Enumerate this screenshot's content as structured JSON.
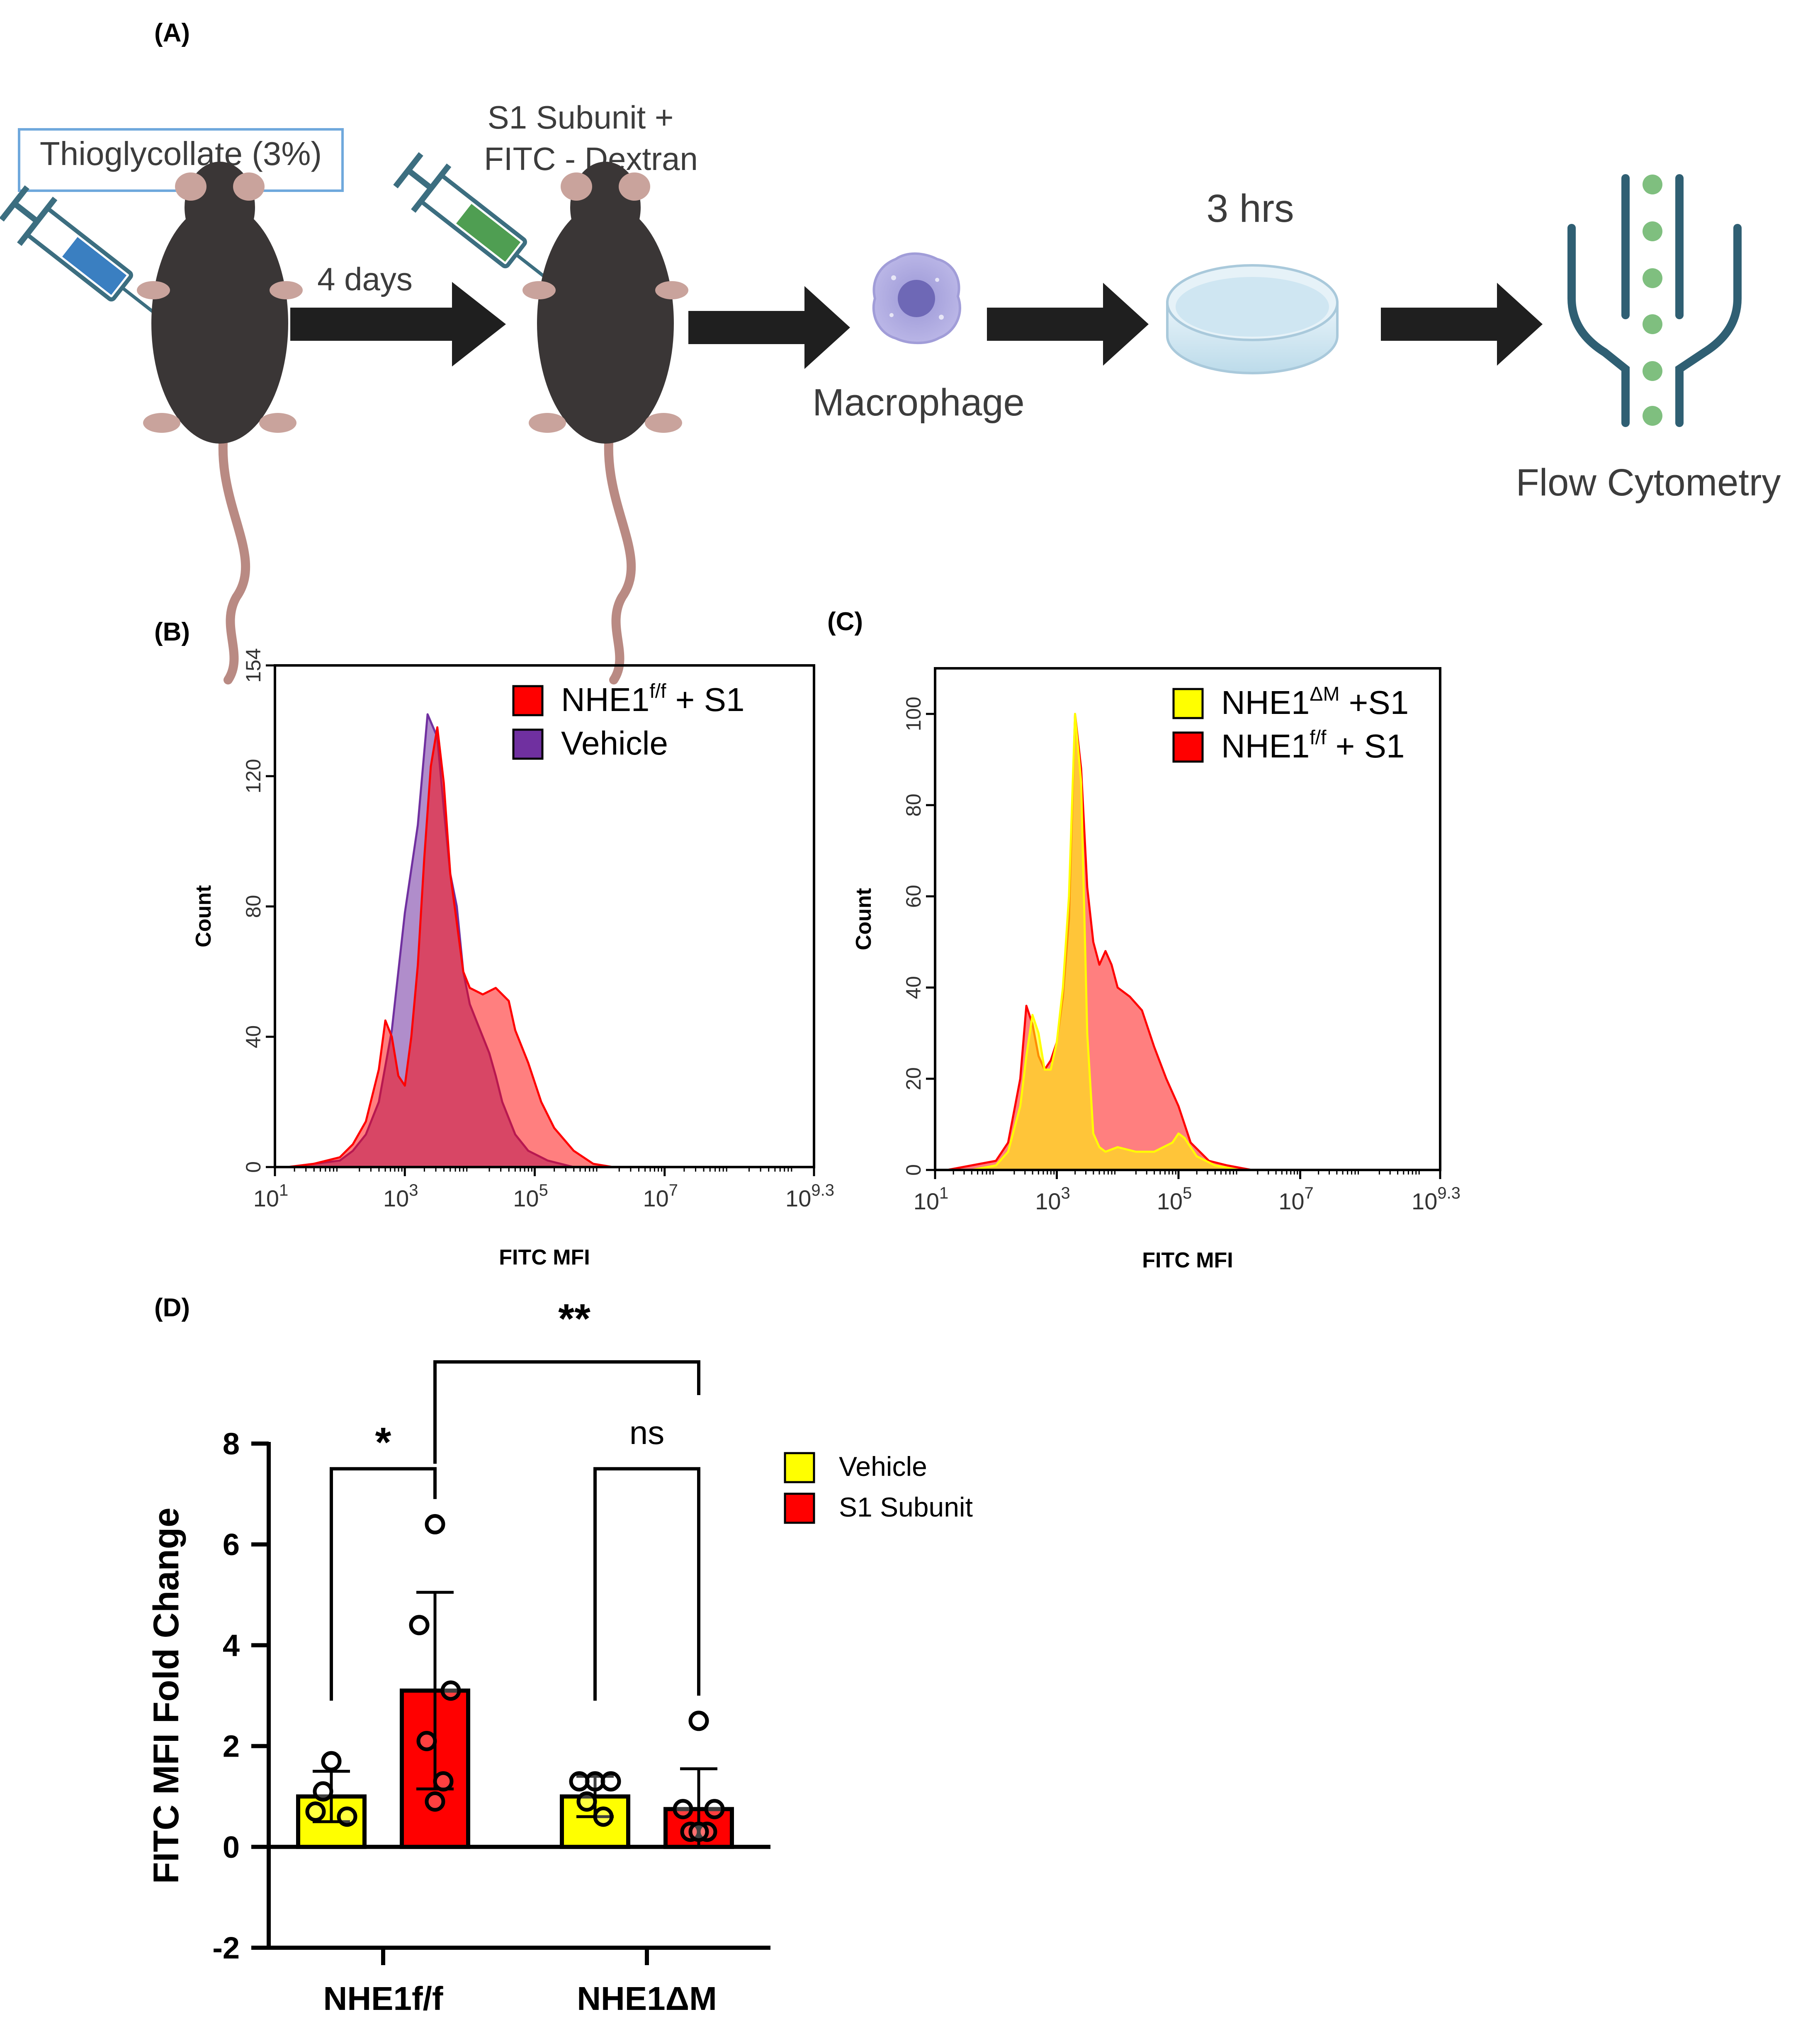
{
  "panel_a": {
    "label": "(A)",
    "injection1": "Thioglycollate (3%)",
    "arrow1_label": "4 days",
    "injection2_line1": "S1 Subunit +",
    "injection2_line2": "FITC - Dextran",
    "cell_label": "Macrophage",
    "incubation_label": "3 hrs",
    "readout_label": "Flow Cytometry",
    "colors": {
      "mouse": "#3a3636",
      "tail": "#b98a83",
      "syringe1": "#3a7fc1",
      "syringe2": "#4f9e52",
      "macrophage": "#8a86c8",
      "dish": "#cfe6f2",
      "flow_line": "#2f5f73",
      "flow_dot": "#7fbf7f",
      "arrow": "#1f1f1f",
      "box_border": "#6fa8dc"
    }
  },
  "chart_data": [
    {
      "panel": "(B)",
      "type": "area",
      "xlabel": "FITC MFI",
      "ylabel": "Count",
      "xscale": "log10",
      "xlim": [
        1,
        9.3
      ],
      "ylim": [
        0,
        154
      ],
      "xticks": [
        {
          "pos": 1,
          "base": "10",
          "exp": "1"
        },
        {
          "pos": 3,
          "base": "10",
          "exp": "3"
        },
        {
          "pos": 5,
          "base": "10",
          "exp": "5"
        },
        {
          "pos": 7,
          "base": "10",
          "exp": "7"
        },
        {
          "pos": 9.3,
          "base": "10",
          "exp": "9.3"
        }
      ],
      "yticks": [
        0,
        40,
        80,
        120,
        154
      ],
      "legend_position": "top-right",
      "series": [
        {
          "name": "Vehicle",
          "legend_parts": [
            "Vehicle",
            "",
            ""
          ],
          "color": "#7030a0",
          "fill_opacity": 0.55,
          "x": [
            1.2,
            1.6,
            2.0,
            2.2,
            2.4,
            2.6,
            2.8,
            3.0,
            3.2,
            3.35,
            3.5,
            3.6,
            3.7,
            3.8,
            3.9,
            4.0,
            4.1,
            4.2,
            4.3,
            4.4,
            4.5,
            4.7,
            4.9,
            5.2,
            5.6
          ],
          "y": [
            0,
            1,
            2,
            5,
            10,
            20,
            42,
            78,
            105,
            139,
            132,
            110,
            90,
            80,
            60,
            50,
            45,
            40,
            35,
            28,
            20,
            10,
            5,
            2,
            0
          ]
        },
        {
          "name": "NHE1f/f + S1",
          "legend_parts": [
            "NHE1",
            "f/f",
            " + S1"
          ],
          "color": "#ff0000",
          "fill_opacity": 0.5,
          "x": [
            1.2,
            1.6,
            2.0,
            2.2,
            2.4,
            2.6,
            2.7,
            2.8,
            2.9,
            3.0,
            3.1,
            3.2,
            3.3,
            3.4,
            3.5,
            3.6,
            3.7,
            3.8,
            3.9,
            4.0,
            4.2,
            4.4,
            4.6,
            4.7,
            4.9,
            5.1,
            5.3,
            5.6,
            5.9,
            6.2
          ],
          "y": [
            0,
            1,
            3,
            7,
            14,
            30,
            45,
            40,
            28,
            25,
            40,
            62,
            95,
            123,
            135,
            118,
            90,
            75,
            60,
            55,
            53,
            55,
            51,
            42,
            32,
            20,
            12,
            5,
            1,
            0
          ]
        }
      ]
    },
    {
      "panel": "(C)",
      "type": "area",
      "xlabel": "FITC MFI",
      "ylabel": "Count",
      "xscale": "log10",
      "xlim": [
        1,
        9.3
      ],
      "ylim": [
        0,
        110
      ],
      "xticks": [
        {
          "pos": 1,
          "base": "10",
          "exp": "1"
        },
        {
          "pos": 3,
          "base": "10",
          "exp": "3"
        },
        {
          "pos": 5,
          "base": "10",
          "exp": "5"
        },
        {
          "pos": 7,
          "base": "10",
          "exp": "7"
        },
        {
          "pos": 9.3,
          "base": "10",
          "exp": "9.3"
        }
      ],
      "yticks": [
        0,
        20,
        40,
        60,
        80,
        100
      ],
      "legend_position": "top-right",
      "series": [
        {
          "name": "NHE1f/f + S1",
          "legend_parts": [
            "NHE1",
            "f/f",
            " + S1"
          ],
          "color": "#ff0000",
          "fill_opacity": 0.5,
          "x": [
            1.2,
            1.6,
            2.0,
            2.2,
            2.4,
            2.5,
            2.6,
            2.7,
            2.8,
            2.9,
            3.0,
            3.1,
            3.2,
            3.3,
            3.4,
            3.5,
            3.6,
            3.7,
            3.8,
            3.9,
            4.0,
            4.2,
            4.4,
            4.6,
            4.8,
            5.0,
            5.2,
            5.5,
            5.8,
            6.2
          ],
          "y": [
            0,
            1,
            2,
            6,
            20,
            36,
            32,
            25,
            22,
            24,
            28,
            38,
            55,
            100,
            88,
            62,
            50,
            45,
            48,
            45,
            40,
            38,
            35,
            27,
            20,
            14,
            6,
            2,
            1,
            0
          ]
        },
        {
          "name": "NHE1ΔM +S1",
          "legend_parts": [
            "NHE1",
            "ΔM",
            " +S1"
          ],
          "color": "#ffff00",
          "fill_opacity": 0.55,
          "x": [
            1.2,
            1.6,
            2.0,
            2.2,
            2.4,
            2.5,
            2.6,
            2.7,
            2.8,
            2.9,
            3.0,
            3.1,
            3.2,
            3.3,
            3.4,
            3.5,
            3.6,
            3.7,
            3.8,
            4.0,
            4.3,
            4.6,
            4.9,
            5.0,
            5.1,
            5.3,
            5.6,
            6.0
          ],
          "y": [
            0,
            0,
            1,
            4,
            14,
            25,
            34,
            30,
            22,
            22,
            28,
            40,
            60,
            100,
            85,
            30,
            8,
            5,
            4,
            5,
            4,
            4,
            6,
            8,
            7,
            3,
            1,
            0
          ]
        }
      ]
    },
    {
      "panel": "(D)",
      "type": "bar",
      "ylabel": "FITC MFI Fold Change",
      "ylim": [
        -2,
        8
      ],
      "yticks": [
        -2,
        0,
        2,
        4,
        6,
        8
      ],
      "groups": [
        "NHE1f/f",
        "NHE1ΔM"
      ],
      "legend_position": "right",
      "series": [
        {
          "name": "Vehicle",
          "color": "#ffff00",
          "values": [
            1.0,
            1.0
          ],
          "sd": [
            0.5,
            0.4
          ],
          "points": [
            [
              1.7,
              0.7,
              0.6,
              1.1
            ],
            [
              1.3,
              1.3,
              1.3,
              0.9,
              0.6
            ]
          ]
        },
        {
          "name": "S1 Subunit",
          "color": "#ff0000",
          "values": [
            3.1,
            0.75
          ],
          "sd": [
            1.95,
            0.8
          ],
          "points": [
            [
              6.4,
              4.4,
              3.1,
              2.1,
              1.3,
              0.9
            ],
            [
              2.5,
              0.75,
              0.75,
              0.3,
              0.3,
              0.3
            ]
          ]
        }
      ],
      "significance": [
        {
          "label": "*",
          "between": "NHE1f/f Vehicle vs NHE1f/f S1 Subunit"
        },
        {
          "label": "ns",
          "between": "NHE1ΔM Vehicle vs NHE1ΔM S1 Subunit"
        },
        {
          "label": "**",
          "between": "NHE1f/f S1 Subunit vs NHE1ΔM S1 Subunit"
        }
      ]
    }
  ]
}
